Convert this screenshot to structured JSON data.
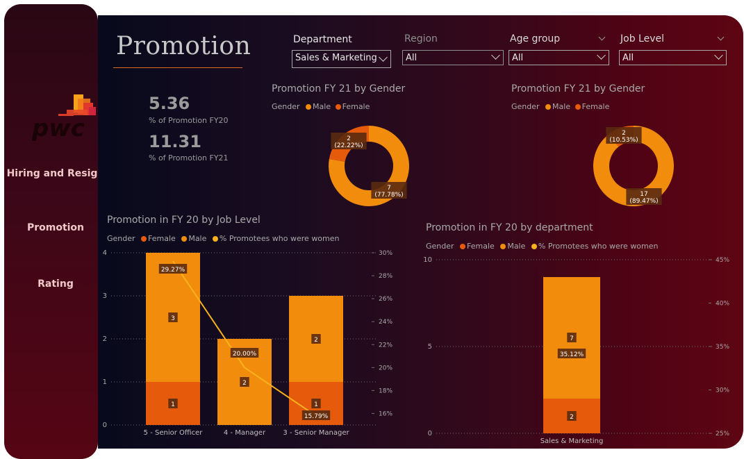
{
  "colors": {
    "male": "#f28c0c",
    "female": "#e65a0c",
    "pct_line": "#f8b21e",
    "label_bg": "#5a2a10"
  },
  "sidebar": {
    "items": [
      {
        "label": "Hiring and Resign"
      },
      {
        "label": "Promotion"
      },
      {
        "label": "Rating"
      }
    ]
  },
  "page": {
    "title": "Promotion"
  },
  "kpis": [
    {
      "value": "5.36",
      "label": "% of Promotion FY20"
    },
    {
      "value": "11.31",
      "label": "% of Promotion FY21"
    }
  ],
  "slicers": [
    {
      "label": "Department",
      "value": "Sales & Marketing"
    },
    {
      "label": "Region",
      "value": "All"
    },
    {
      "label": "Age group",
      "value": "All"
    },
    {
      "label": "Job Level",
      "value": "All"
    }
  ],
  "donut_left": {
    "title": "Promotion FY 21 by Gender",
    "legend": {
      "title": "Gender",
      "items": [
        "Male",
        "Female"
      ]
    },
    "labels": {
      "female": "2\n(22.22%)",
      "male": "7\n(77.78%)"
    }
  },
  "donut_right": {
    "title": "Promotion FY 21 by Gender",
    "legend": {
      "title": "Gender",
      "items": [
        "Male",
        "Female"
      ]
    },
    "labels": {
      "female": "2\n(10.53%)",
      "male": "17\n(89.47%)"
    }
  },
  "bar_left": {
    "title": "Promotion in FY 20 by Job Level",
    "legend": {
      "title": "Gender",
      "items": [
        "Female",
        "Male",
        "% Promotees who were women"
      ]
    },
    "y_ticks": [
      "0",
      "1",
      "2",
      "3",
      "4"
    ],
    "y2_ticks": [
      "16%",
      "18%",
      "20%",
      "22%",
      "24%",
      "26%",
      "28%",
      "30%"
    ],
    "pct_labels": [
      "29.27%",
      "20.00%",
      "15.79%"
    ]
  },
  "bar_right": {
    "title": "Promotion in FY 20 by department",
    "legend": {
      "title": "Gender",
      "items": [
        "Female",
        "Male",
        "% Promotees who were women"
      ]
    },
    "y_ticks": [
      "0",
      "5",
      "10"
    ],
    "y2_ticks": [
      "25%",
      "30%",
      "35%",
      "40%",
      "45%"
    ],
    "pct_labels": [
      "35.12%"
    ]
  },
  "chart_data": [
    {
      "type": "pie",
      "title": "Promotion FY 21 by Gender",
      "categories": [
        "Male",
        "Female"
      ],
      "values": [
        7,
        2
      ],
      "percents": [
        77.78,
        22.22
      ]
    },
    {
      "type": "pie",
      "title": "Promotion FY 21 by Gender",
      "categories": [
        "Male",
        "Female"
      ],
      "values": [
        17,
        2
      ],
      "percents": [
        89.47,
        10.53
      ]
    },
    {
      "type": "bar",
      "title": "Promotion in FY 20 by Job Level",
      "categories": [
        "5 - Senior Officer",
        "4 - Manager",
        "3 - Senior Manager"
      ],
      "series": [
        {
          "name": "Female",
          "values": [
            1,
            0,
            1
          ]
        },
        {
          "name": "Male",
          "values": [
            3,
            2,
            2
          ]
        },
        {
          "name": "% Promotees who were women",
          "values": [
            29.27,
            20.0,
            15.79
          ]
        }
      ],
      "ylim": [
        0,
        4
      ],
      "y2lim": [
        15,
        30
      ]
    },
    {
      "type": "bar",
      "title": "Promotion in FY 20 by department",
      "categories": [
        "Sales & Marketing"
      ],
      "series": [
        {
          "name": "Female",
          "values": [
            2
          ]
        },
        {
          "name": "Male",
          "values": [
            7
          ]
        },
        {
          "name": "% Promotees who were women",
          "values": [
            35.12
          ]
        }
      ],
      "ylim": [
        0,
        10
      ],
      "y2lim": [
        25,
        45
      ]
    }
  ]
}
